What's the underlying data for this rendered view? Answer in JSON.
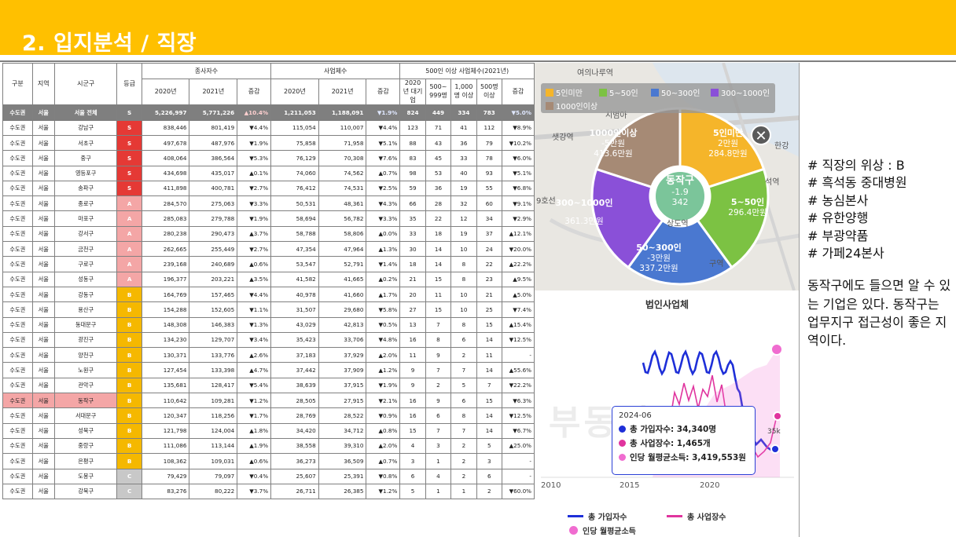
{
  "header": {
    "title": "2. 입지분석 / 직장"
  },
  "table": {
    "headers": {
      "gubun": "구분",
      "region": "지역",
      "sigungu": "시군구",
      "grade": "등급",
      "employees_group": "종사자수",
      "firms_group": "사업체수",
      "large_group": "500인 이상 사업체수(2021년)",
      "y2020": "2020년",
      "y2021": "2021년",
      "change": "증감",
      "l_2020": "2020년 대기업",
      "l_500": "500~ 999명",
      "l_1000": "1,000명 이상",
      "l_500up": "500명 이상",
      "l_change": "증감"
    },
    "rows": [
      {
        "g": "수도권",
        "r": "서울",
        "s": "서울 전체",
        "grade": "S",
        "e20": "5,226,997",
        "e21": "5,771,226",
        "ec": "▲10.4%",
        "ed": "up",
        "f20": "1,211,053",
        "f21": "1,188,091",
        "fc": "▼1.9%",
        "fd": "down",
        "a": "824",
        "b": "449",
        "c": "334",
        "d": "783",
        "lc": "▼5.0%",
        "ld": "down",
        "total": true
      },
      {
        "g": "수도권",
        "r": "서울",
        "s": "강남구",
        "grade": "S",
        "e20": "838,446",
        "e21": "801,419",
        "ec": "▼4.4%",
        "ed": "down",
        "f20": "115,054",
        "f21": "110,007",
        "fc": "▼4.4%",
        "fd": "down",
        "a": "123",
        "b": "71",
        "c": "41",
        "d": "112",
        "lc": "▼8.9%",
        "ld": "down"
      },
      {
        "g": "수도권",
        "r": "서울",
        "s": "서초구",
        "grade": "S",
        "e20": "497,678",
        "e21": "487,976",
        "ec": "▼1.9%",
        "ed": "down",
        "f20": "75,858",
        "f21": "71,958",
        "fc": "▼5.1%",
        "fd": "down",
        "a": "88",
        "b": "43",
        "c": "36",
        "d": "79",
        "lc": "▼10.2%",
        "ld": "down"
      },
      {
        "g": "수도권",
        "r": "서울",
        "s": "중구",
        "grade": "S",
        "e20": "408,064",
        "e21": "386,564",
        "ec": "▼5.3%",
        "ed": "down",
        "f20": "76,129",
        "f21": "70,308",
        "fc": "▼7.6%",
        "fd": "down",
        "a": "83",
        "b": "45",
        "c": "33",
        "d": "78",
        "lc": "▼6.0%",
        "ld": "down"
      },
      {
        "g": "수도권",
        "r": "서울",
        "s": "영등포구",
        "grade": "S",
        "e20": "434,698",
        "e21": "435,017",
        "ec": "▲0.1%",
        "ed": "up",
        "f20": "74,060",
        "f21": "74,562",
        "fc": "▲0.7%",
        "fd": "up",
        "a": "98",
        "b": "53",
        "c": "40",
        "d": "93",
        "lc": "▼5.1%",
        "ld": "down"
      },
      {
        "g": "수도권",
        "r": "서울",
        "s": "송파구",
        "grade": "S",
        "e20": "411,898",
        "e21": "400,781",
        "ec": "▼2.7%",
        "ed": "down",
        "f20": "76,412",
        "f21": "74,531",
        "fc": "▼2.5%",
        "fd": "down",
        "a": "59",
        "b": "36",
        "c": "19",
        "d": "55",
        "lc": "▼6.8%",
        "ld": "down"
      },
      {
        "g": "수도권",
        "r": "서울",
        "s": "종로구",
        "grade": "A",
        "e20": "284,570",
        "e21": "275,063",
        "ec": "▼3.3%",
        "ed": "down",
        "f20": "50,531",
        "f21": "48,361",
        "fc": "▼4.3%",
        "fd": "down",
        "a": "66",
        "b": "28",
        "c": "32",
        "d": "60",
        "lc": "▼9.1%",
        "ld": "down"
      },
      {
        "g": "수도권",
        "r": "서울",
        "s": "마포구",
        "grade": "A",
        "e20": "285,083",
        "e21": "279,788",
        "ec": "▼1.9%",
        "ed": "down",
        "f20": "58,694",
        "f21": "56,782",
        "fc": "▼3.3%",
        "fd": "down",
        "a": "35",
        "b": "22",
        "c": "12",
        "d": "34",
        "lc": "▼2.9%",
        "ld": "down"
      },
      {
        "g": "수도권",
        "r": "서울",
        "s": "강서구",
        "grade": "A",
        "e20": "280,238",
        "e21": "290,473",
        "ec": "▲3.7%",
        "ed": "up",
        "f20": "58,788",
        "f21": "58,806",
        "fc": "▲0.0%",
        "fd": "up",
        "a": "33",
        "b": "18",
        "c": "19",
        "d": "37",
        "lc": "▲12.1%",
        "ld": "up"
      },
      {
        "g": "수도권",
        "r": "서울",
        "s": "금천구",
        "grade": "A",
        "e20": "262,665",
        "e21": "255,449",
        "ec": "▼2.7%",
        "ed": "down",
        "f20": "47,354",
        "f21": "47,964",
        "fc": "▲1.3%",
        "fd": "up",
        "a": "30",
        "b": "14",
        "c": "10",
        "d": "24",
        "lc": "▼20.0%",
        "ld": "down"
      },
      {
        "g": "수도권",
        "r": "서울",
        "s": "구로구",
        "grade": "A",
        "e20": "239,168",
        "e21": "240,689",
        "ec": "▲0.6%",
        "ed": "up",
        "f20": "53,547",
        "f21": "52,791",
        "fc": "▼1.4%",
        "fd": "down",
        "a": "18",
        "b": "14",
        "c": "8",
        "d": "22",
        "lc": "▲22.2%",
        "ld": "up"
      },
      {
        "g": "수도권",
        "r": "서울",
        "s": "성동구",
        "grade": "A",
        "e20": "196,377",
        "e21": "203,221",
        "ec": "▲3.5%",
        "ed": "up",
        "f20": "41,582",
        "f21": "41,665",
        "fc": "▲0.2%",
        "fd": "up",
        "a": "21",
        "b": "15",
        "c": "8",
        "d": "23",
        "lc": "▲9.5%",
        "ld": "up"
      },
      {
        "g": "수도권",
        "r": "서울",
        "s": "강동구",
        "grade": "B",
        "e20": "164,769",
        "e21": "157,465",
        "ec": "▼4.4%",
        "ed": "down",
        "f20": "40,978",
        "f21": "41,660",
        "fc": "▲1.7%",
        "fd": "up",
        "a": "20",
        "b": "11",
        "c": "10",
        "d": "21",
        "lc": "▲5.0%",
        "ld": "up"
      },
      {
        "g": "수도권",
        "r": "서울",
        "s": "용산구",
        "grade": "B",
        "e20": "154,288",
        "e21": "152,605",
        "ec": "▼1.1%",
        "ed": "down",
        "f20": "31,507",
        "f21": "29,680",
        "fc": "▼5.8%",
        "fd": "down",
        "a": "27",
        "b": "15",
        "c": "10",
        "d": "25",
        "lc": "▼7.4%",
        "ld": "down"
      },
      {
        "g": "수도권",
        "r": "서울",
        "s": "동대문구",
        "grade": "B",
        "e20": "148,308",
        "e21": "146,383",
        "ec": "▼1.3%",
        "ed": "down",
        "f20": "43,029",
        "f21": "42,813",
        "fc": "▼0.5%",
        "fd": "down",
        "a": "13",
        "b": "7",
        "c": "8",
        "d": "15",
        "lc": "▲15.4%",
        "ld": "up"
      },
      {
        "g": "수도권",
        "r": "서울",
        "s": "광진구",
        "grade": "B",
        "e20": "134,230",
        "e21": "129,707",
        "ec": "▼3.4%",
        "ed": "down",
        "f20": "35,423",
        "f21": "33,706",
        "fc": "▼4.8%",
        "fd": "down",
        "a": "16",
        "b": "8",
        "c": "6",
        "d": "14",
        "lc": "▼12.5%",
        "ld": "down"
      },
      {
        "g": "수도권",
        "r": "서울",
        "s": "양천구",
        "grade": "B",
        "e20": "130,371",
        "e21": "133,776",
        "ec": "▲2.6%",
        "ed": "up",
        "f20": "37,183",
        "f21": "37,929",
        "fc": "▲2.0%",
        "fd": "up",
        "a": "11",
        "b": "9",
        "c": "2",
        "d": "11",
        "lc": "-",
        "ld": ""
      },
      {
        "g": "수도권",
        "r": "서울",
        "s": "노원구",
        "grade": "B",
        "e20": "127,454",
        "e21": "133,398",
        "ec": "▲4.7%",
        "ed": "up",
        "f20": "37,442",
        "f21": "37,909",
        "fc": "▲1.2%",
        "fd": "up",
        "a": "9",
        "b": "7",
        "c": "7",
        "d": "14",
        "lc": "▲55.6%",
        "ld": "up"
      },
      {
        "g": "수도권",
        "r": "서울",
        "s": "관악구",
        "grade": "B",
        "e20": "135,681",
        "e21": "128,417",
        "ec": "▼5.4%",
        "ed": "down",
        "f20": "38,639",
        "f21": "37,915",
        "fc": "▼1.9%",
        "fd": "down",
        "a": "9",
        "b": "2",
        "c": "5",
        "d": "7",
        "lc": "▼22.2%",
        "ld": "down"
      },
      {
        "g": "수도권",
        "r": "서울",
        "s": "동작구",
        "grade": "B",
        "e20": "110,642",
        "e21": "109,281",
        "ec": "▼1.2%",
        "ed": "down",
        "f20": "28,505",
        "f21": "27,915",
        "fc": "▼2.1%",
        "fd": "down",
        "a": "16",
        "b": "9",
        "c": "6",
        "d": "15",
        "lc": "▼6.3%",
        "ld": "down",
        "hl": true
      },
      {
        "g": "수도권",
        "r": "서울",
        "s": "서대문구",
        "grade": "B",
        "e20": "120,347",
        "e21": "118,256",
        "ec": "▼1.7%",
        "ed": "down",
        "f20": "28,769",
        "f21": "28,522",
        "fc": "▼0.9%",
        "fd": "down",
        "a": "16",
        "b": "6",
        "c": "8",
        "d": "14",
        "lc": "▼12.5%",
        "ld": "down"
      },
      {
        "g": "수도권",
        "r": "서울",
        "s": "성북구",
        "grade": "B",
        "e20": "121,798",
        "e21": "124,004",
        "ec": "▲1.8%",
        "ed": "up",
        "f20": "34,420",
        "f21": "34,712",
        "fc": "▲0.8%",
        "fd": "up",
        "a": "15",
        "b": "7",
        "c": "7",
        "d": "14",
        "lc": "▼6.7%",
        "ld": "down"
      },
      {
        "g": "수도권",
        "r": "서울",
        "s": "중랑구",
        "grade": "B",
        "e20": "111,086",
        "e21": "113,144",
        "ec": "▲1.9%",
        "ed": "up",
        "f20": "38,558",
        "f21": "39,310",
        "fc": "▲2.0%",
        "fd": "up",
        "a": "4",
        "b": "3",
        "c": "2",
        "d": "5",
        "lc": "▲25.0%",
        "ld": "up"
      },
      {
        "g": "수도권",
        "r": "서울",
        "s": "은평구",
        "grade": "B",
        "e20": "108,362",
        "e21": "109,031",
        "ec": "▲0.6%",
        "ed": "up",
        "f20": "36,273",
        "f21": "36,509",
        "fc": "▲0.7%",
        "fd": "up",
        "a": "3",
        "b": "1",
        "c": "2",
        "d": "3",
        "lc": "-",
        "ld": ""
      },
      {
        "g": "수도권",
        "r": "서울",
        "s": "도봉구",
        "grade": "C",
        "e20": "79,429",
        "e21": "79,097",
        "ec": "▼0.4%",
        "ed": "down",
        "f20": "25,607",
        "f21": "25,391",
        "fc": "▼0.8%",
        "fd": "down",
        "a": "6",
        "b": "4",
        "c": "2",
        "d": "6",
        "lc": "-",
        "ld": ""
      },
      {
        "g": "수도권",
        "r": "서울",
        "s": "강북구",
        "grade": "C",
        "e20": "83,276",
        "e21": "80,222",
        "ec": "▼3.7%",
        "ed": "down",
        "f20": "26,711",
        "f21": "26,385",
        "fc": "▼1.2%",
        "fd": "down",
        "a": "5",
        "b": "1",
        "c": "1",
        "d": "2",
        "lc": "▼60.0%",
        "ld": "down"
      }
    ]
  },
  "donut": {
    "legend": [
      {
        "label": "5인미만",
        "color": "#F5B52A"
      },
      {
        "label": "5~50인",
        "color": "#7CC243"
      },
      {
        "label": "50~300인",
        "color": "#4A78D0"
      },
      {
        "label": "300~1000인",
        "color": "#8A50D8"
      },
      {
        "label": "1000인이상",
        "color": "#A68A75"
      }
    ],
    "segments": [
      {
        "name": "5인미만",
        "change": "2만원",
        "value": "284.8만원"
      },
      {
        "name": "5~50인",
        "change": "",
        "value": "296.4만원"
      },
      {
        "name": "50~300인",
        "change": "-3만원",
        "value": "337.2만원"
      },
      {
        "name": "300~1000인",
        "change": "",
        "value": "361.3만원"
      },
      {
        "name": "1000인이상",
        "change": "-5만원",
        "value": "413.6만원"
      }
    ],
    "center": {
      "name": "동작구",
      "change": "-1.9",
      "value": "342"
    },
    "map_labels": [
      "여의나루역",
      "샛강역",
      "한강",
      "상도역",
      "구역",
      "시범아",
      "석역",
      "9호선"
    ],
    "close_icon": "close-icon"
  },
  "chart": {
    "title": "법인사업체",
    "watermark": "부동산",
    "x_ticks": [
      "2010",
      "2015",
      "2020"
    ],
    "badge": "35k",
    "tooltip": {
      "date": "2024-06",
      "rows": [
        {
          "label": "총 가입자수: 34,340명",
          "color": "#1E2FD8"
        },
        {
          "label": "총 사업장수: 1,465개",
          "color": "#E0349E"
        },
        {
          "label": "인당 월평균소득: 3,419,553원",
          "color": "#F06CD0"
        }
      ]
    },
    "legend": [
      {
        "label": "총 가입자수",
        "color": "#1E2FD8",
        "kind": "line"
      },
      {
        "label": "총 사업장수",
        "color": "#E0349E",
        "kind": "line"
      },
      {
        "label": "인당 월평균소득",
        "color": "#F06CD0",
        "kind": "dot"
      }
    ]
  },
  "notes": {
    "items": [
      "# 직장의 위상 : B",
      "# 흑석동 중대병원",
      "# 농심본사",
      "# 유한양행",
      "# 부광약품",
      "# 가페24본사"
    ],
    "paragraph": "동작구에도 들으면 알 수 있는 기업은 있다. 동작구는 업무지구 접근성이 좋은 지역이다."
  }
}
